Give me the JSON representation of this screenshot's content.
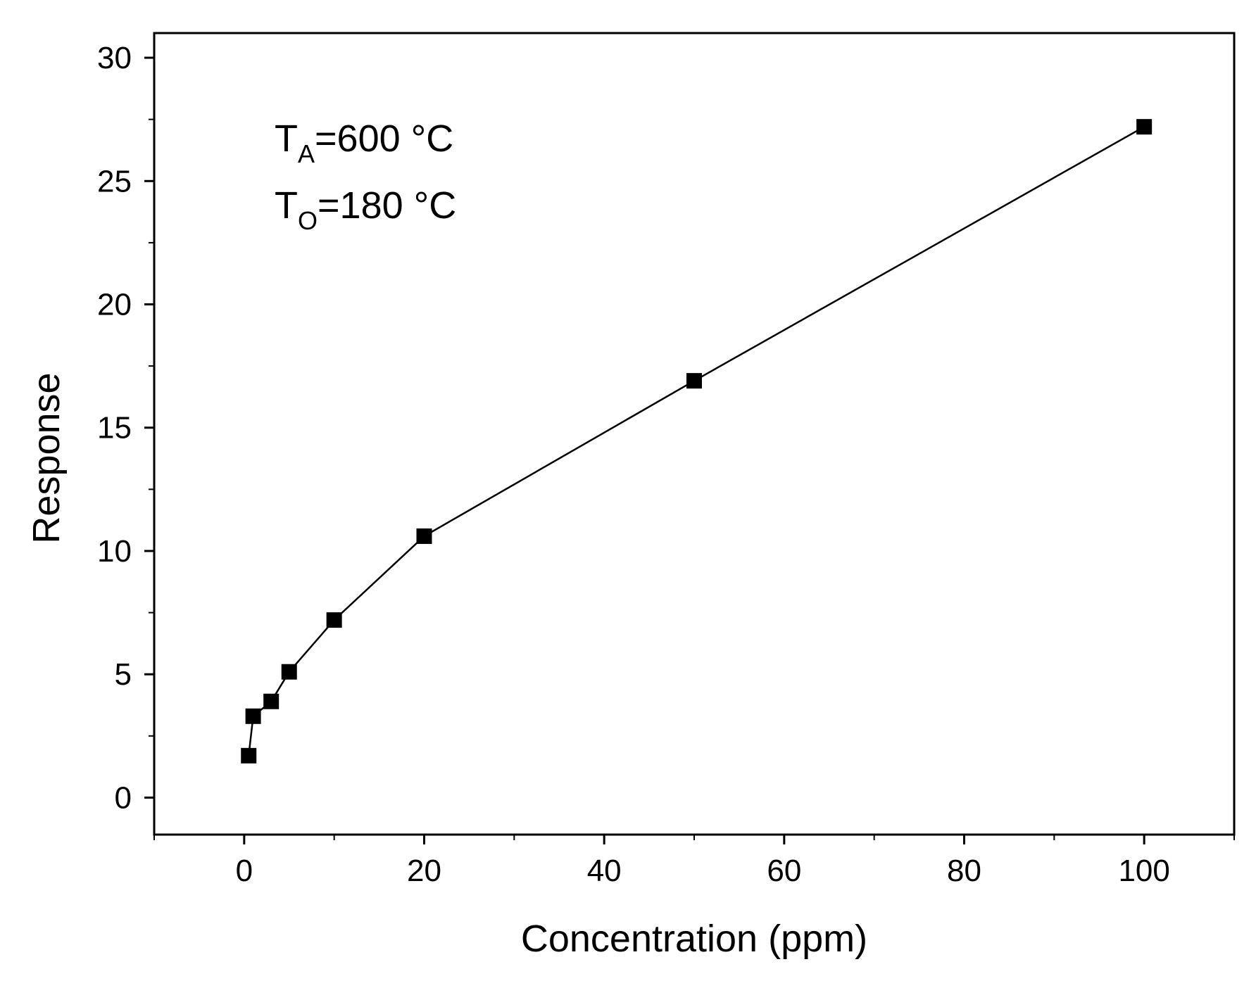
{
  "chart_data": {
    "type": "line",
    "title": "",
    "xlabel": "Concentration (ppm)",
    "ylabel": "Response",
    "xlim": [
      -10,
      110
    ],
    "ylim": [
      -1.5,
      31
    ],
    "xticks": [
      0,
      20,
      40,
      60,
      80,
      100
    ],
    "yticks": [
      0,
      5,
      10,
      15,
      20,
      25,
      30
    ],
    "xtick_labels": [
      "0",
      "20",
      "40",
      "60",
      "80",
      "100"
    ],
    "ytick_labels": [
      "0",
      "5",
      "10",
      "15",
      "20",
      "25",
      "30"
    ],
    "grid": false,
    "marker": "square",
    "colors": {
      "line": "#000000",
      "marker": "#000000"
    },
    "series": [
      {
        "name": "Response",
        "x": [
          0.5,
          1,
          3,
          5,
          10,
          20,
          50,
          100
        ],
        "y": [
          1.7,
          3.3,
          3.9,
          5.1,
          7.2,
          10.6,
          16.9,
          27.2
        ]
      }
    ],
    "annotations": [
      {
        "main": "T",
        "sub": "A",
        "rest": "=600 °C"
      },
      {
        "main": "T",
        "sub": "O",
        "rest": "=180 °C"
      }
    ]
  }
}
